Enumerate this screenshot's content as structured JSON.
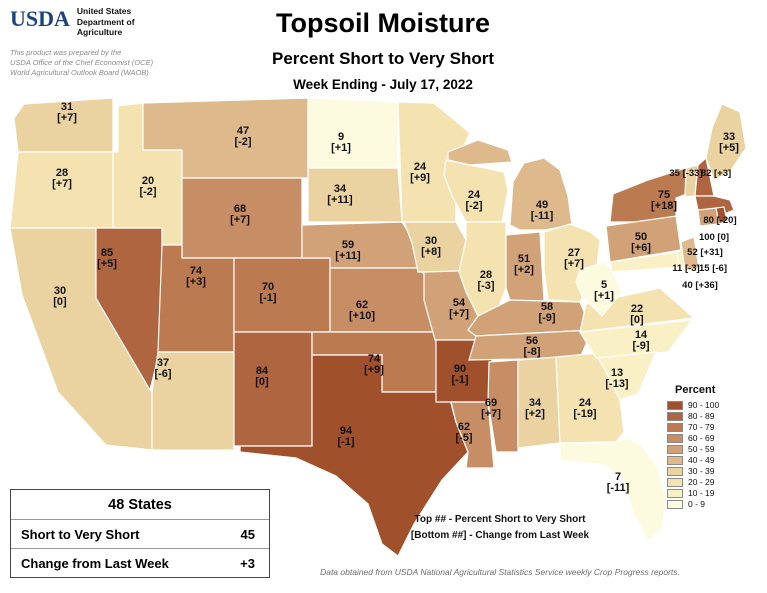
{
  "colors": {
    "usda_blue": "#1a4480"
  },
  "header": {
    "agency_acronym": "USDA",
    "agency_name": "United States\nDepartment of\nAgriculture",
    "prepared_by": "This product was prepared by the\nUSDA Office of the Chief Economist (OCE)\nWorld Agricultural Outlook Board (WAOB)",
    "title": "Topsoil Moisture",
    "subtitle": "Percent Short to Very Short",
    "week_ending": "Week Ending - July 17, 2022"
  },
  "summary_box": {
    "title": "48 States",
    "rows": [
      {
        "label": "Short to Very Short",
        "value": "45"
      },
      {
        "label": "Change from Last Week",
        "value": "+3"
      }
    ]
  },
  "legend": {
    "title": "Percent",
    "classes": [
      {
        "range": "90 - 100",
        "color": "#A0512B"
      },
      {
        "range": "80 - 89",
        "color": "#AF6540"
      },
      {
        "range": "70 - 79",
        "color": "#BC7A51"
      },
      {
        "range": "60 - 69",
        "color": "#C78E65"
      },
      {
        "range": "50 - 59",
        "color": "#D1A277"
      },
      {
        "range": "40 - 49",
        "color": "#DDB98C"
      },
      {
        "range": "30 - 39",
        "color": "#EBD3A1"
      },
      {
        "range": "20 - 29",
        "color": "#F4E3B1"
      },
      {
        "range": "10 - 19",
        "color": "#FAF0C5"
      },
      {
        "range": "0 - 9",
        "color": "#FDFBDF"
      }
    ]
  },
  "notes": {
    "top_note": "Top ## - Percent Short to Very Short",
    "bottom_note": "[Bottom ##] - Change from Last Week",
    "source": "Data obtained from USDA National Agricultural Statistics Service weekly Crop Progress reports."
  },
  "chart_data": {
    "type": "choropleth",
    "region": "United States (48 states)",
    "value_label": "Percent Short to Very Short",
    "change_label": "Change from Last Week",
    "states": [
      {
        "state": "WA",
        "percent": 31,
        "change": "+7"
      },
      {
        "state": "OR",
        "percent": 28,
        "change": "+7"
      },
      {
        "state": "CA",
        "percent": 30,
        "change": "0"
      },
      {
        "state": "NV",
        "percent": 85,
        "change": "+5"
      },
      {
        "state": "ID",
        "percent": 20,
        "change": "-2"
      },
      {
        "state": "MT",
        "percent": 47,
        "change": "-2"
      },
      {
        "state": "WY",
        "percent": 68,
        "change": "+7"
      },
      {
        "state": "UT",
        "percent": 74,
        "change": "+3"
      },
      {
        "state": "CO",
        "percent": 70,
        "change": "-1"
      },
      {
        "state": "AZ",
        "percent": 37,
        "change": "-6"
      },
      {
        "state": "NM",
        "percent": 84,
        "change": "0"
      },
      {
        "state": "ND",
        "percent": 9,
        "change": "+1"
      },
      {
        "state": "SD",
        "percent": 34,
        "change": "+11"
      },
      {
        "state": "NE",
        "percent": 59,
        "change": "+11"
      },
      {
        "state": "KS",
        "percent": 62,
        "change": "+10"
      },
      {
        "state": "OK",
        "percent": 74,
        "change": "+9"
      },
      {
        "state": "TX",
        "percent": 94,
        "change": "-1"
      },
      {
        "state": "MN",
        "percent": 24,
        "change": "+9"
      },
      {
        "state": "IA",
        "percent": 30,
        "change": "+8"
      },
      {
        "state": "MO",
        "percent": 54,
        "change": "+7"
      },
      {
        "state": "AR",
        "percent": 90,
        "change": "-1"
      },
      {
        "state": "LA",
        "percent": 62,
        "change": "-5"
      },
      {
        "state": "WI",
        "percent": 24,
        "change": "-2"
      },
      {
        "state": "IL",
        "percent": 28,
        "change": "-3"
      },
      {
        "state": "IN",
        "percent": 51,
        "change": "+2"
      },
      {
        "state": "MI",
        "percent": 49,
        "change": "-11"
      },
      {
        "state": "OH",
        "percent": 27,
        "change": "+7"
      },
      {
        "state": "KY",
        "percent": 58,
        "change": "-9"
      },
      {
        "state": "TN",
        "percent": 56,
        "change": "-8"
      },
      {
        "state": "MS",
        "percent": 69,
        "change": "+7"
      },
      {
        "state": "AL",
        "percent": 34,
        "change": "+2"
      },
      {
        "state": "GA",
        "percent": 24,
        "change": "-19"
      },
      {
        "state": "FL",
        "percent": 7,
        "change": "-11"
      },
      {
        "state": "SC",
        "percent": 13,
        "change": "-13"
      },
      {
        "state": "NC",
        "percent": 14,
        "change": "-9"
      },
      {
        "state": "VA",
        "percent": 22,
        "change": "0"
      },
      {
        "state": "WV",
        "percent": 5,
        "change": "+1"
      },
      {
        "state": "PA",
        "percent": 50,
        "change": "+6"
      },
      {
        "state": "NY",
        "percent": 75,
        "change": "+18"
      },
      {
        "state": "NJ",
        "percent": 40,
        "change": "+36"
      },
      {
        "state": "DE",
        "percent": 15,
        "change": "-6"
      },
      {
        "state": "MD",
        "percent": 11,
        "change": "-3"
      },
      {
        "state": "CT",
        "percent": 52,
        "change": "+31"
      },
      {
        "state": "RI",
        "percent": 100,
        "change": "0"
      },
      {
        "state": "MA",
        "percent": 80,
        "change": "-20"
      },
      {
        "state": "VT",
        "percent": 35,
        "change": "-33"
      },
      {
        "state": "NH",
        "percent": 82,
        "change": "+3"
      },
      {
        "state": "ME",
        "percent": 33,
        "change": "+5"
      }
    ]
  }
}
